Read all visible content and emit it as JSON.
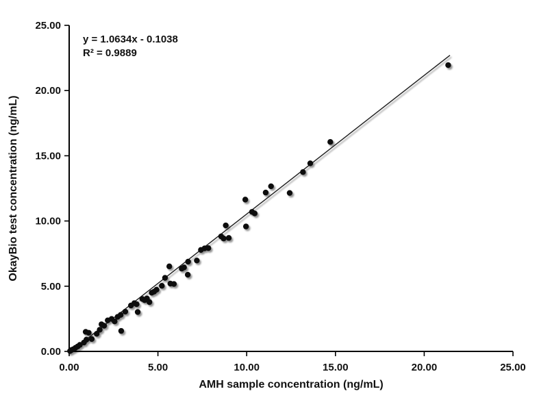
{
  "chart_data": {
    "type": "scatter",
    "title": "",
    "xlabel": "AMH sample concentration (ng/mL)",
    "ylabel": "OkayBio test concentration (ng/mL)",
    "xlim": [
      0,
      25
    ],
    "ylim": [
      0,
      25
    ],
    "xticks": [
      0,
      5,
      10,
      15,
      20,
      25
    ],
    "yticks": [
      0,
      5,
      10,
      15,
      20,
      25
    ],
    "tick_decimals": 2,
    "grid": false,
    "legend": "none",
    "marker_color": "#0b0b0b",
    "axis_color": "#000000",
    "annotation": {
      "equation": "y = 1.0634x - 0.1038",
      "r_squared": "R² = 0.9889"
    },
    "trendline": {
      "slope": 1.0634,
      "intercept": -0.1038,
      "x_start": 0,
      "x_end": 21.45,
      "color": "#1a1a1a"
    },
    "points": [
      [
        0.05,
        0.03
      ],
      [
        0.12,
        0.1
      ],
      [
        0.22,
        0.16
      ],
      [
        0.35,
        0.27
      ],
      [
        0.48,
        0.38
      ],
      [
        0.6,
        0.5
      ],
      [
        0.83,
        0.68
      ],
      [
        0.97,
        0.9
      ],
      [
        1.27,
        0.95
      ],
      [
        0.93,
        1.5
      ],
      [
        1.1,
        1.43
      ],
      [
        1.55,
        1.35
      ],
      [
        1.72,
        1.66
      ],
      [
        1.82,
        2.08
      ],
      [
        1.97,
        1.97
      ],
      [
        2.17,
        2.38
      ],
      [
        2.39,
        2.49
      ],
      [
        2.56,
        2.3
      ],
      [
        2.73,
        2.65
      ],
      [
        2.9,
        2.8
      ],
      [
        2.93,
        1.57
      ],
      [
        3.16,
        3.05
      ],
      [
        3.48,
        3.52
      ],
      [
        3.67,
        3.7
      ],
      [
        3.8,
        3.62
      ],
      [
        3.86,
        3.02
      ],
      [
        4.12,
        4.02
      ],
      [
        4.25,
        3.93
      ],
      [
        4.38,
        4.06
      ],
      [
        4.52,
        3.78
      ],
      [
        4.65,
        4.5
      ],
      [
        4.78,
        4.58
      ],
      [
        4.92,
        4.73
      ],
      [
        5.22,
        5.03
      ],
      [
        5.4,
        5.64
      ],
      [
        5.64,
        6.52
      ],
      [
        5.7,
        5.2
      ],
      [
        5.9,
        5.17
      ],
      [
        6.34,
        6.35
      ],
      [
        6.47,
        6.44
      ],
      [
        6.7,
        6.88
      ],
      [
        6.68,
        5.88
      ],
      [
        7.19,
        6.97
      ],
      [
        7.42,
        7.78
      ],
      [
        7.63,
        7.9
      ],
      [
        7.84,
        7.92
      ],
      [
        8.56,
        8.82
      ],
      [
        8.7,
        8.66
      ],
      [
        8.82,
        9.66
      ],
      [
        8.99,
        8.7
      ],
      [
        9.92,
        11.64
      ],
      [
        9.96,
        9.58
      ],
      [
        10.3,
        10.7
      ],
      [
        10.45,
        10.58
      ],
      [
        11.07,
        12.18
      ],
      [
        11.37,
        12.66
      ],
      [
        12.42,
        12.15
      ],
      [
        13.17,
        13.75
      ],
      [
        13.58,
        14.42
      ],
      [
        14.71,
        16.06
      ],
      [
        21.35,
        21.95
      ]
    ]
  }
}
